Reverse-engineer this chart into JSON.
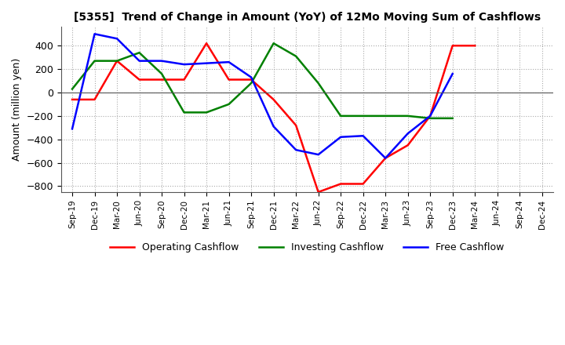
{
  "title": "[5355]  Trend of Change in Amount (YoY) of 12Mo Moving Sum of Cashflows",
  "ylabel": "Amount (million yen)",
  "ylim": [
    -850,
    560
  ],
  "yticks": [
    -800,
    -600,
    -400,
    -200,
    0,
    200,
    400
  ],
  "background_color": "#ffffff",
  "grid_color": "#aaaaaa",
  "x_labels": [
    "Sep-19",
    "Dec-19",
    "Mar-20",
    "Jun-20",
    "Sep-20",
    "Dec-20",
    "Mar-21",
    "Jun-21",
    "Sep-21",
    "Dec-21",
    "Mar-22",
    "Jun-22",
    "Sep-22",
    "Dec-22",
    "Mar-23",
    "Jun-23",
    "Sep-23",
    "Dec-23",
    "Mar-24",
    "Jun-24",
    "Sep-24",
    "Dec-24"
  ],
  "operating": [
    -60,
    -60,
    270,
    110,
    110,
    110,
    420,
    110,
    110,
    -60,
    -280,
    -850,
    -780,
    -780,
    -560,
    -450,
    -200,
    400,
    400,
    null,
    null,
    null
  ],
  "investing": [
    30,
    270,
    270,
    340,
    160,
    -170,
    -170,
    -100,
    80,
    420,
    310,
    80,
    -200,
    -200,
    -200,
    -200,
    -220,
    -220,
    null,
    null,
    null,
    null
  ],
  "free": [
    -310,
    500,
    460,
    270,
    270,
    240,
    250,
    260,
    130,
    -290,
    -490,
    -530,
    -380,
    -370,
    -560,
    -350,
    -200,
    160,
    null,
    null,
    null,
    null
  ],
  "operating_color": "#ff0000",
  "investing_color": "#008000",
  "free_color": "#0000ff",
  "line_width": 1.8
}
